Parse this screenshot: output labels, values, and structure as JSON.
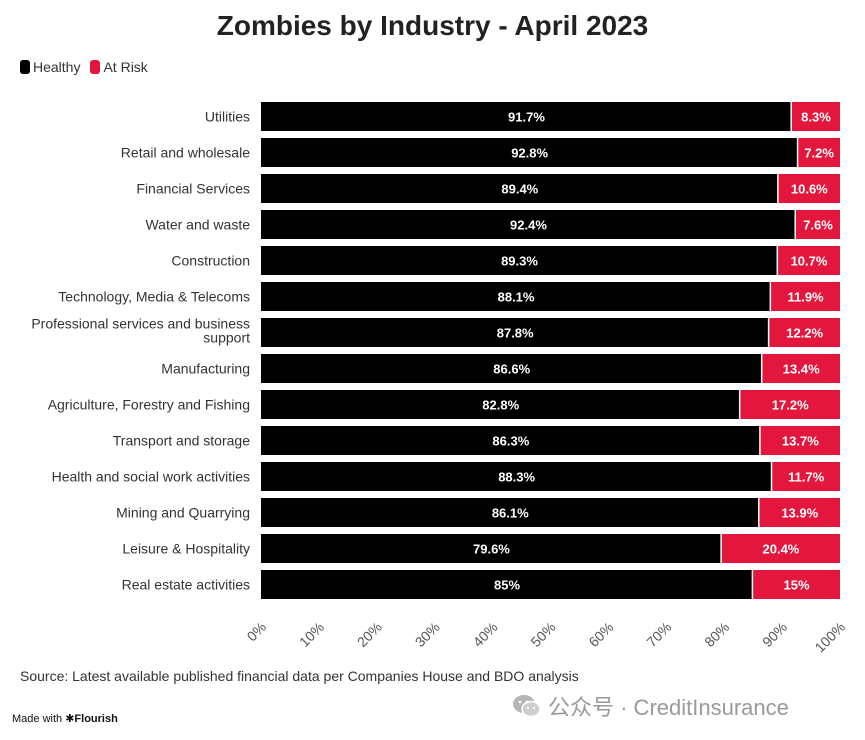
{
  "chart_data": {
    "type": "bar",
    "orientation": "horizontal",
    "stacked": true,
    "title": "Zombies by Industry - April 2023",
    "categories": [
      [
        "Utilities"
      ],
      [
        "Retail and wholesale"
      ],
      [
        "Financial Services"
      ],
      [
        "Water and waste"
      ],
      [
        "Construction"
      ],
      [
        "Technology, Media & Telecoms"
      ],
      [
        "Professional services and business",
        "support"
      ],
      [
        "Manufacturing"
      ],
      [
        "Agriculture, Forestry and Fishing"
      ],
      [
        "Transport and storage"
      ],
      [
        "Health and social work activities"
      ],
      [
        "Mining and Quarrying"
      ],
      [
        "Leisure & Hospitality"
      ],
      [
        "Real estate activities"
      ]
    ],
    "series": [
      {
        "name": "Healthy",
        "color": "#000000",
        "values": [
          91.7,
          92.8,
          89.4,
          92.4,
          89.3,
          88.1,
          87.8,
          86.6,
          82.8,
          86.3,
          88.3,
          86.1,
          79.6,
          85
        ],
        "labels": [
          "91.7%",
          "92.8%",
          "89.4%",
          "92.4%",
          "89.3%",
          "88.1%",
          "87.8%",
          "86.6%",
          "82.8%",
          "86.3%",
          "88.3%",
          "86.1%",
          "79.6%",
          "85%"
        ]
      },
      {
        "name": "At Risk",
        "color": "#e3173e",
        "values": [
          8.3,
          7.2,
          10.6,
          7.6,
          10.7,
          11.9,
          12.2,
          13.4,
          17.2,
          13.7,
          11.7,
          13.9,
          20.4,
          15
        ],
        "labels": [
          "8.3%",
          "7.2%",
          "10.6%",
          "7.6%",
          "10.7%",
          "11.9%",
          "12.2%",
          "13.4%",
          "17.2%",
          "13.7%",
          "11.7%",
          "13.9%",
          "20.4%",
          "15%"
        ]
      }
    ],
    "xlim": [
      0,
      100
    ],
    "xticks": [
      "0%",
      "10%",
      "20%",
      "30%",
      "40%",
      "50%",
      "60%",
      "70%",
      "80%",
      "90%",
      "100%"
    ],
    "legend_position": "top-left",
    "grid": false
  },
  "source": "Source: Latest available published financial data per Companies House and BDO analysis",
  "made_with": "Made with",
  "flourish": "Flourish",
  "watermark": "公众号 · CreditInsurance"
}
